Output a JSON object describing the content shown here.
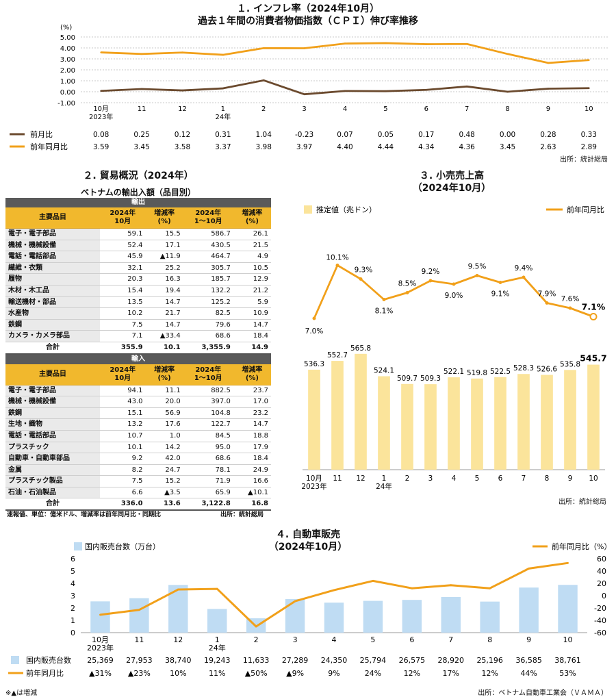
{
  "section1": {
    "title1": "１. インフレ率（2024年10月）",
    "title2": "過去１年間の消費者物価指数（ＣＰＩ）伸び率推移",
    "unit": "(%)",
    "source": "出所：統計総局",
    "chart_data": {
      "type": "line",
      "categories": [
        "10月\n2023年",
        "11",
        "12",
        "1\n24年",
        "2",
        "3",
        "4",
        "5",
        "6",
        "7",
        "8",
        "9",
        "10"
      ],
      "ylim": [
        -1.0,
        5.0
      ],
      "yticks": [
        "5.00",
        "4.00",
        "3.00",
        "2.00",
        "1.00",
        "0.00",
        "-1.00"
      ],
      "series": [
        {
          "name": "前月比",
          "color": "#6b4a2e",
          "values": [
            0.08,
            0.25,
            0.12,
            0.31,
            1.04,
            -0.23,
            0.07,
            0.05,
            0.17,
            0.48,
            0.0,
            0.28,
            0.33
          ],
          "labels": [
            "0.08",
            "0.25",
            "0.12",
            "0.31",
            "1.04",
            "-0.23",
            "0.07",
            "0.05",
            "0.17",
            "0.48",
            "0.00",
            "0.28",
            "0.33"
          ]
        },
        {
          "name": "前年同月比",
          "color": "#f1a01a",
          "values": [
            3.59,
            3.45,
            3.58,
            3.37,
            3.98,
            3.97,
            4.4,
            4.44,
            4.34,
            4.36,
            3.45,
            2.63,
            2.89
          ],
          "labels": [
            "3.59",
            "3.45",
            "3.58",
            "3.37",
            "3.98",
            "3.97",
            "4.40",
            "4.44",
            "4.34",
            "4.36",
            "3.45",
            "2.63",
            "2.89"
          ]
        }
      ]
    }
  },
  "section2": {
    "title": "２. 貿易概況（2024年）",
    "subtitle": "ベトナムの輸出入額（品目別）",
    "export_label": "輸出",
    "import_label": "輸入",
    "col_item": "主要品目",
    "col_oct_a": "2024年",
    "col_oct_b": "10月",
    "col_yoy_a": "増減率",
    "col_yoy_b": "(%)",
    "col_ytd_a": "2024年",
    "col_ytd_b": "1～10月",
    "col_yoy2_a": "増減率",
    "col_yoy2_b": "(%)",
    "total_label": "合計",
    "exports": [
      {
        "name": "電子・電子部品",
        "oct": "59.1",
        "yoy": "15.5",
        "ytd": "586.7",
        "yoy2": "26.1"
      },
      {
        "name": "機械・機械設備",
        "oct": "52.4",
        "yoy": "17.1",
        "ytd": "430.5",
        "yoy2": "21.5"
      },
      {
        "name": "電話・電話部品",
        "oct": "45.9",
        "yoy": "▲11.9",
        "ytd": "464.7",
        "yoy2": "4.9"
      },
      {
        "name": "繊維・衣類",
        "oct": "32.1",
        "yoy": "25.2",
        "ytd": "305.7",
        "yoy2": "10.5"
      },
      {
        "name": "履物",
        "oct": "20.3",
        "yoy": "16.3",
        "ytd": "185.7",
        "yoy2": "12.9"
      },
      {
        "name": "木材・木工品",
        "oct": "15.4",
        "yoy": "19.4",
        "ytd": "132.2",
        "yoy2": "21.2"
      },
      {
        "name": "輸送機材・部品",
        "oct": "13.5",
        "yoy": "14.7",
        "ytd": "125.2",
        "yoy2": "5.9"
      },
      {
        "name": "水産物",
        "oct": "10.2",
        "yoy": "21.7",
        "ytd": "82.5",
        "yoy2": "10.9"
      },
      {
        "name": "鉄鋼",
        "oct": "7.5",
        "yoy": "14.7",
        "ytd": "79.6",
        "yoy2": "14.7"
      },
      {
        "name": "カメラ・カメラ部品",
        "oct": "7.1",
        "yoy": "▲33.4",
        "ytd": "68.6",
        "yoy2": "18.4"
      }
    ],
    "export_total": {
      "oct": "355.9",
      "yoy": "10.1",
      "ytd": "3,355.9",
      "yoy2": "14.9"
    },
    "imports": [
      {
        "name": "電子・電子部品",
        "oct": "94.1",
        "yoy": "11.1",
        "ytd": "882.5",
        "yoy2": "23.7"
      },
      {
        "name": "機械・機械設備",
        "oct": "43.0",
        "yoy": "20.0",
        "ytd": "397.0",
        "yoy2": "17.0"
      },
      {
        "name": "鉄鋼",
        "oct": "15.1",
        "yoy": "56.9",
        "ytd": "104.8",
        "yoy2": "23.2"
      },
      {
        "name": "生地・織物",
        "oct": "13.2",
        "yoy": "17.6",
        "ytd": "122.7",
        "yoy2": "14.7"
      },
      {
        "name": "電話・電話部品",
        "oct": "10.7",
        "yoy": "1.0",
        "ytd": "84.5",
        "yoy2": "18.8"
      },
      {
        "name": "プラスチック",
        "oct": "10.1",
        "yoy": "14.2",
        "ytd": "95.0",
        "yoy2": "17.9"
      },
      {
        "name": "自動車・自動車部品",
        "oct": "9.2",
        "yoy": "42.0",
        "ytd": "68.6",
        "yoy2": "18.4"
      },
      {
        "name": "金属",
        "oct": "8.2",
        "yoy": "24.7",
        "ytd": "78.1",
        "yoy2": "24.9"
      },
      {
        "name": "プラスチック製品",
        "oct": "7.5",
        "yoy": "15.2",
        "ytd": "71.9",
        "yoy2": "16.6"
      },
      {
        "name": "石油・石油製品",
        "oct": "6.6",
        "yoy": "▲3.5",
        "ytd": "65.9",
        "yoy2": "▲10.1"
      }
    ],
    "import_total": {
      "oct": "336.0",
      "yoy": "13.6",
      "ytd": "3,122.8",
      "yoy2": "16.8"
    },
    "note": "速報値、単位：億米ドル、増減率は前年同月比・同期比",
    "source": "出所：統計総局"
  },
  "section3": {
    "title1": "３. 小売売上高",
    "title2": "（2024年10月）",
    "source": "出所：統計総局",
    "chart_data": {
      "type": "bar",
      "categories": [
        "10月\n2023年",
        "11",
        "12",
        "1\n24年",
        "2",
        "3",
        "4",
        "5",
        "6",
        "7",
        "8",
        "9",
        "10"
      ],
      "series": [
        {
          "name": "推定値（兆ドン）",
          "color": "#fbe49b",
          "values": [
            536.3,
            552.7,
            565.8,
            524.1,
            509.7,
            509.3,
            522.1,
            519.8,
            522.5,
            528.3,
            526.6,
            535.8,
            545.7
          ],
          "labels": [
            "536.3",
            "552.7",
            "565.8",
            "524.1",
            "509.7",
            "509.3",
            "522.1",
            "519.8",
            "522.5",
            "528.3",
            "526.6",
            "535.8",
            "545.7"
          ]
        },
        {
          "name": "前年同月比",
          "color": "#f1a01a",
          "values": [
            7.0,
            10.1,
            9.3,
            8.1,
            8.5,
            9.2,
            9.0,
            9.5,
            9.1,
            9.4,
            7.9,
            7.6,
            7.1
          ],
          "labels": [
            "7.0%",
            "10.1%",
            "9.3%",
            "8.1%",
            "8.5%",
            "9.2%",
            "9.0%",
            "9.5%",
            "9.1%",
            "9.4%",
            "7.9%",
            "7.6%",
            "7.1%"
          ]
        }
      ]
    }
  },
  "section4": {
    "title1": "４. 自動車販売",
    "title2": "（2024年10月）",
    "left_unit": "国内販売台数（万台）",
    "right_unit": "前年同月比（%）",
    "note": "※▲は増減",
    "source": "出所：ベトナム自動車工業会（ＶＡＭＡ）",
    "chart_data": {
      "type": "bar",
      "categories": [
        "10月\n2023年",
        "11",
        "12",
        "1\n24年",
        "2",
        "3",
        "4",
        "5",
        "6",
        "7",
        "8",
        "9",
        "10"
      ],
      "ylim_left": [
        0,
        6
      ],
      "ylim_right": [
        -60,
        60
      ],
      "yticks_left": [
        "6",
        "5",
        "4",
        "3",
        "2",
        "1",
        "0"
      ],
      "yticks_right": [
        "60",
        "40",
        "20",
        "0",
        "-20",
        "-40",
        "-60"
      ],
      "series": [
        {
          "name": "国内販売台数",
          "color": "#bfdcf3",
          "values": [
            2.5369,
            2.7953,
            3.874,
            1.9243,
            1.1633,
            2.7289,
            2.435,
            2.5794,
            2.6575,
            2.892,
            2.5196,
            3.6585,
            3.8761
          ],
          "labels": [
            "25,369",
            "27,953",
            "38,740",
            "19,243",
            "11,633",
            "27,289",
            "24,350",
            "25,794",
            "26,575",
            "28,920",
            "25,196",
            "36,585",
            "38,761"
          ]
        },
        {
          "name": "前年同月比",
          "color": "#f1a01a",
          "values": [
            -31,
            -23,
            10,
            11,
            -50,
            -9,
            9,
            24,
            12,
            17,
            12,
            44,
            53
          ],
          "labels": [
            "▲31%",
            "▲23%",
            "10%",
            "11%",
            "▲50%",
            "▲9%",
            "9%",
            "24%",
            "12%",
            "17%",
            "12%",
            "44%",
            "53%"
          ]
        }
      ]
    }
  }
}
